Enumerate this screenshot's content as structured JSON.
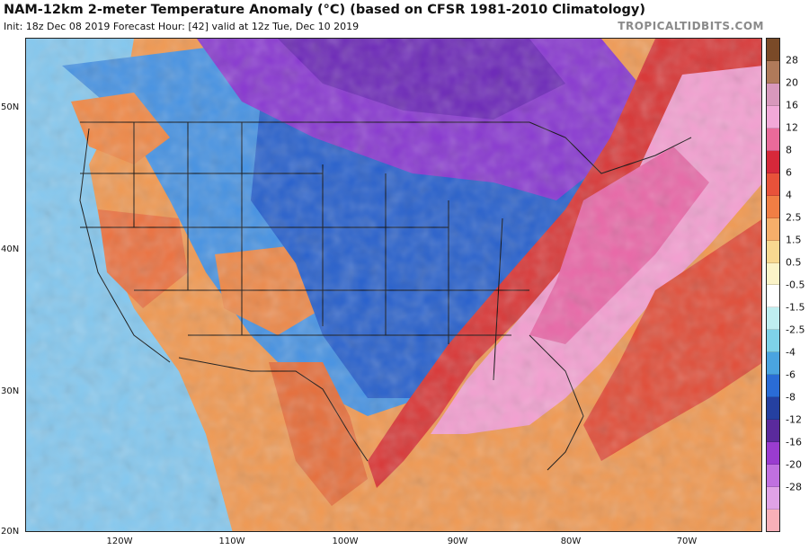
{
  "header": {
    "title": "NAM-12km 2-meter Temperature Anomaly (°C) (based on CFSR 1981-2010 Climatology)",
    "subtitle": "Init: 18z Dec 08 2019   Forecast Hour: [42]   valid at 12z Tue, Dec 10 2019",
    "brand": "TROPICALTIDBITS.COM"
  },
  "axes": {
    "lat_labels": [
      "50N",
      "40N",
      "30N",
      "20N"
    ],
    "lon_labels": [
      "120W",
      "110W",
      "100W",
      "90W",
      "80W",
      "70W"
    ]
  },
  "colorbar": {
    "labels": [
      "28",
      "20",
      "16",
      "12",
      "8",
      "6",
      "4",
      "2.5",
      "1.5",
      "0.5",
      "-0.5",
      "-1.5",
      "-2.5",
      "-4",
      "-6",
      "-8",
      "-12",
      "-16",
      "-20",
      "-28"
    ],
    "colors": [
      "#7a4a28",
      "#b07a5a",
      "#d898bc",
      "#f2a8d8",
      "#ea6a9a",
      "#d6283a",
      "#e8523a",
      "#f07e44",
      "#f6ae6a",
      "#f8d890",
      "#fbf3c8",
      "#ffffff",
      "#bfeef0",
      "#7ed2e8",
      "#4aa4e0",
      "#2a6cd6",
      "#2540a0",
      "#5a2a9c",
      "#9a3cd0",
      "#c070e0",
      "#e0a2e6",
      "#f8b0b8"
    ]
  },
  "map": {
    "colors": {
      "cold_purple": "#8a3cd0",
      "deep_blue": "#2c5cc8",
      "blue": "#3f8be0",
      "light_blue": "#86c8ee",
      "warm_orange": "#ef9a55",
      "red": "#d83a3a",
      "pink": "#f2a0d0",
      "deep_pink": "#e86aa8",
      "border": "#111111"
    }
  }
}
